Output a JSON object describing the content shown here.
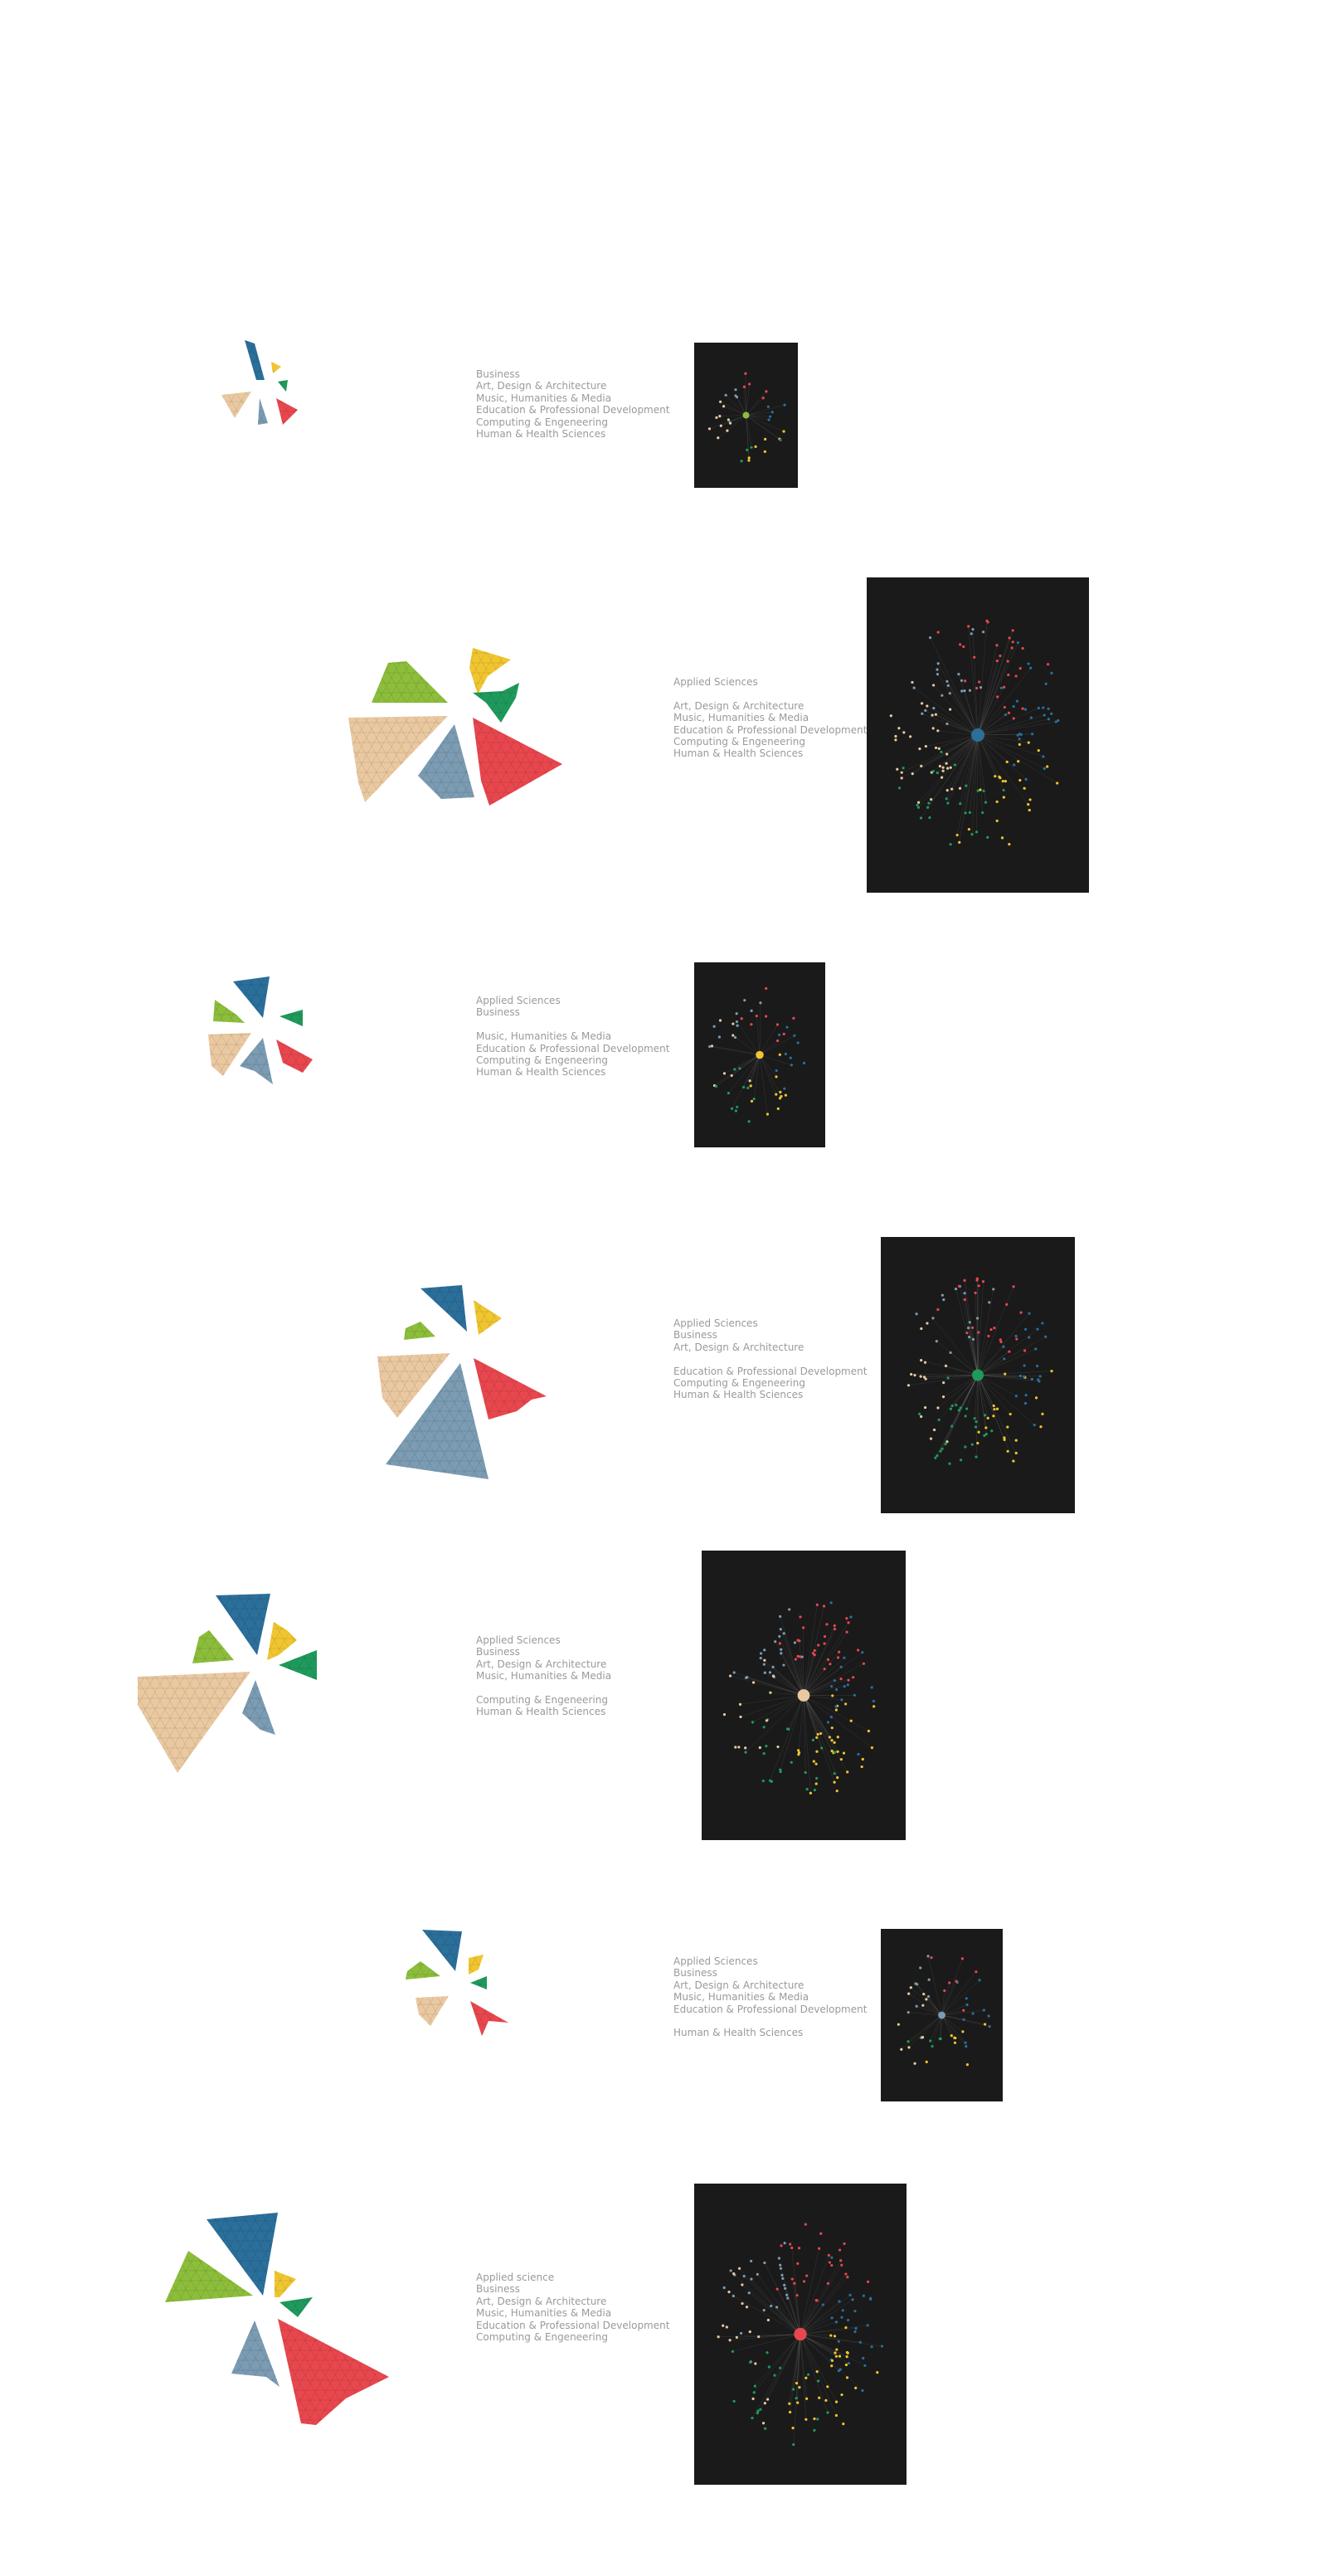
{
  "colors": {
    "business": "#2b6f9b",
    "art": "#f0c630",
    "music": "#1f9a5c",
    "education": "#eac9a1",
    "computing": "#7b9cb3",
    "health": "#e8474e",
    "applied": "#8cbe3b",
    "panel_bg": "#1a1a1a",
    "legend_text": "#9a9a9a"
  },
  "rows": [
    {
      "legend": [
        "Business",
        "Art, Design & Architecture",
        "Music, Humanities & Media",
        "Education & Professional Development",
        "Computing & Engeneering",
        "Human & Health Sciences"
      ],
      "hub_color": "#8cbe3b"
    },
    {
      "legend": [
        "Applied Sciences",
        "",
        "Art, Design & Architecture",
        "Music, Humanities & Media",
        "Education & Professional Development",
        "Computing & Engeneering",
        "Human & Health Sciences"
      ],
      "hub_color": "#2b6f9b"
    },
    {
      "legend": [
        "Applied Sciences",
        "Business",
        "",
        "Music, Humanities & Media",
        "Education & Professional Development",
        "Computing & Engeneering",
        "Human & Health Sciences"
      ],
      "hub_color": "#f0c630"
    },
    {
      "legend": [
        "Applied Sciences",
        "Business",
        "Art, Design & Architecture",
        "",
        "Education & Professional Development",
        "Computing & Engeneering",
        "Human & Health Sciences"
      ],
      "hub_color": "#1f9a5c"
    },
    {
      "legend": [
        "Applied Sciences",
        "Business",
        "Art, Design & Architecture",
        "Music, Humanities & Media",
        "",
        "Computing & Engeneering",
        "Human & Health Sciences"
      ],
      "hub_color": "#eac9a1"
    },
    {
      "legend": [
        "Applied Sciences",
        "Business",
        "Art, Design & Architecture",
        "Music, Humanities & Media",
        "Education & Professional Development",
        "",
        "Human & Health Sciences"
      ],
      "hub_color": "#7b9cb3"
    },
    {
      "legend": [
        "Applied science",
        "Business",
        "Art, Design & Architecture",
        "Music, Humanities & Media",
        "Education & Professional Development",
        "Computing & Engeneering"
      ],
      "hub_color": "#e8474e"
    }
  ]
}
